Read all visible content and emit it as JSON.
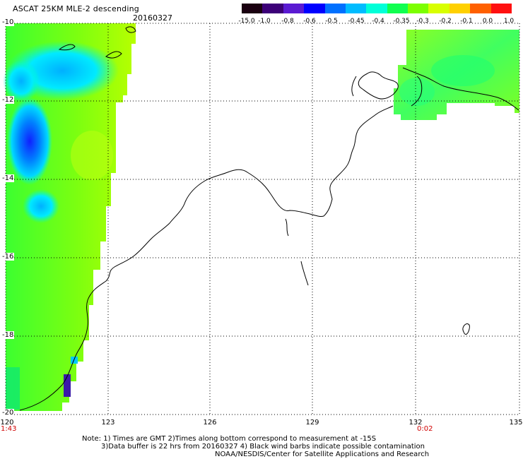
{
  "title": "ASCAT 25KM MLE-2 descending",
  "date": "20160327",
  "colorbar": {
    "labels": [
      "-15.0",
      "-1.0",
      "-0.8",
      "-0.6",
      "-0.5",
      "-0.45",
      "-0.4",
      "-0.35",
      "-0.3",
      "-0.2",
      "-0.1",
      "0.0",
      "1.0"
    ],
    "colors": [
      "#1a0010",
      "#3c0078",
      "#5a1ad2",
      "#0000ff",
      "#0070ff",
      "#00bcff",
      "#00ffd8",
      "#10ff50",
      "#7cff00",
      "#d8ff00",
      "#ffd000",
      "#ff6000",
      "#ff1010"
    ]
  },
  "axes": {
    "lat_labels": [
      "-10",
      "-12",
      "-14",
      "-16",
      "-18",
      "-20"
    ],
    "lon_labels": [
      "120",
      "123",
      "126",
      "129",
      "132",
      "135"
    ]
  },
  "pass_times": [
    "1:43",
    "0:02"
  ],
  "notes": [
    "Note: 1) Times are GMT 2)Times along bottom correspond to measurement at -15S",
    "3)Data buffer is 22 hrs from 20160327 4) Black wind barbs indicate possible contamination",
    "NOAA/NESDIS/Center for Satellite Applications and Research"
  ]
}
